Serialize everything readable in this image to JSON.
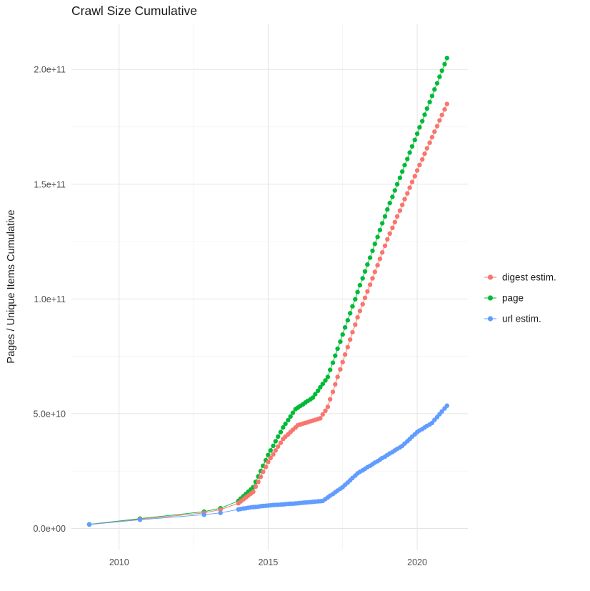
{
  "page": {
    "background": "#ffffff"
  },
  "chart_data": {
    "type": "scatter-line",
    "title": "Crawl Size Cumulative",
    "xlabel": "",
    "ylabel": "Pages / Unique Items Cumulative",
    "legend_position": "right",
    "grid": true,
    "panel": {
      "background": "#ffffff",
      "grid_major_color": "#e4e4e4",
      "grid_minor_color": "#f1f1f1"
    },
    "x_axis": {
      "domain": [
        2008.4,
        2021.7
      ],
      "ticks": [
        {
          "label": "2010",
          "value": 2010
        },
        {
          "label": "2015",
          "value": 2015
        },
        {
          "label": "2020",
          "value": 2020
        }
      ],
      "minor_values": [
        2012.5,
        2017.5
      ]
    },
    "y_axis": {
      "domain_e9": [
        -9.5,
        220
      ],
      "ticks": [
        {
          "label": "0.0e+00",
          "value_e9": 0
        },
        {
          "label": "5.0e+10",
          "value_e9": 50
        },
        {
          "label": "1.0e+11",
          "value_e9": 100
        },
        {
          "label": "1.5e+11",
          "value_e9": 150
        },
        {
          "label": "2.0e+11",
          "value_e9": 200
        }
      ],
      "minor_values_e9": [
        25,
        75,
        125,
        175
      ]
    },
    "values_unit": "1e9 (all y values are in billions of pages/items)",
    "x": [
      2009,
      2010.7,
      2012.85,
      2013.4,
      2014,
      2014.08,
      2014.17,
      2014.25,
      2014.33,
      2014.42,
      2014.5,
      2014.58,
      2014.67,
      2014.75,
      2014.83,
      2014.92,
      2015,
      2015.08,
      2015.17,
      2015.25,
      2015.33,
      2015.42,
      2015.5,
      2015.58,
      2015.67,
      2015.75,
      2015.83,
      2015.92,
      2016,
      2016.08,
      2016.17,
      2016.25,
      2016.33,
      2016.42,
      2016.5,
      2016.58,
      2016.67,
      2016.75,
      2016.83,
      2016.92,
      2017,
      2017.08,
      2017.17,
      2017.25,
      2017.33,
      2017.42,
      2017.5,
      2017.58,
      2017.67,
      2017.75,
      2017.83,
      2017.92,
      2018,
      2018.08,
      2018.17,
      2018.25,
      2018.33,
      2018.42,
      2018.5,
      2018.58,
      2018.67,
      2018.75,
      2018.83,
      2018.92,
      2019,
      2019.08,
      2019.17,
      2019.25,
      2019.33,
      2019.42,
      2019.5,
      2019.58,
      2019.67,
      2019.75,
      2019.83,
      2019.92,
      2020,
      2020.08,
      2020.17,
      2020.25,
      2020.33,
      2020.42,
      2020.5,
      2020.58,
      2020.67,
      2020.75,
      2020.83,
      2020.92,
      2021
    ],
    "series": [
      {
        "key": "digest",
        "name": "digest estim.",
        "color": "#F8766D",
        "values_e9": [
          1.7,
          4.0,
          6.8,
          8.2,
          11,
          11.8,
          12.7,
          13.5,
          14.3,
          15.2,
          16,
          18.2,
          20.3,
          22.5,
          24.7,
          26.8,
          29,
          30.7,
          32.3,
          34,
          35.7,
          37.3,
          39,
          40,
          41,
          42,
          43,
          44,
          45,
          45.3,
          45.7,
          46,
          46.3,
          46.7,
          47,
          47.3,
          47.7,
          48,
          49.7,
          51.3,
          53,
          56.3,
          59.5,
          62.8,
          66,
          69.3,
          72.5,
          75.8,
          79,
          82.3,
          85.5,
          88.8,
          92,
          94.8,
          97.7,
          100.5,
          103.3,
          106.2,
          109,
          111.8,
          114.7,
          117.5,
          120.3,
          123.2,
          126,
          128.5,
          131,
          133.5,
          136,
          138.5,
          141,
          143.5,
          146,
          148.5,
          151,
          153.5,
          156,
          158.4,
          160.8,
          163.3,
          165.7,
          168.1,
          170.5,
          172.9,
          175.3,
          177.8,
          180.2,
          182.6,
          185
        ]
      },
      {
        "key": "page",
        "name": "page",
        "color": "#00BA38",
        "values_e9": [
          1.8,
          4.3,
          7.3,
          8.8,
          12,
          13,
          14,
          15,
          16,
          17,
          18,
          20.3,
          22.7,
          25,
          27.3,
          29.7,
          32,
          34,
          36,
          38,
          40,
          42,
          44,
          45.6,
          47.2,
          48.8,
          50.4,
          52,
          52.7,
          53.4,
          54.1,
          54.9,
          55.6,
          56.3,
          57,
          58.5,
          60,
          61.5,
          63,
          64.5,
          66,
          69.1,
          72.2,
          75.3,
          78.3,
          81.4,
          84.5,
          87.6,
          90.7,
          93.8,
          96.8,
          99.9,
          103,
          106,
          109,
          112,
          115,
          118,
          121,
          124,
          127,
          130,
          133,
          136,
          139,
          141.8,
          144.5,
          147.3,
          150,
          152.8,
          155.5,
          158.3,
          161,
          163.8,
          166.5,
          169.3,
          172,
          174.8,
          177.5,
          180.3,
          183,
          185.8,
          188.5,
          191.3,
          194,
          196.8,
          199.5,
          202.3,
          205
        ]
      },
      {
        "key": "url",
        "name": "url estim.",
        "color": "#619CFF",
        "values_e9": [
          1.7,
          3.8,
          6.0,
          6.8,
          8.3,
          8.5,
          8.7,
          8.8,
          9.0,
          9.2,
          9.3,
          9.4,
          9.5,
          9.7,
          9.8,
          9.9,
          10,
          10.1,
          10.2,
          10.3,
          10.3,
          10.4,
          10.5,
          10.6,
          10.7,
          10.8,
          10.8,
          10.9,
          11,
          11.1,
          11.2,
          11.3,
          11.4,
          11.5,
          11.6,
          11.7,
          11.8,
          11.9,
          12,
          12.8,
          13.5,
          14.3,
          15,
          15.8,
          16.5,
          17.3,
          18,
          19,
          20,
          21,
          22,
          23,
          24,
          24.7,
          25.3,
          26,
          26.7,
          27.3,
          28,
          28.7,
          29.3,
          30,
          30.7,
          31.3,
          32,
          32.7,
          33.3,
          34,
          34.7,
          35.3,
          36,
          37,
          38,
          39,
          40,
          41,
          42,
          42.7,
          43.3,
          44,
          44.7,
          45.3,
          46,
          47.3,
          48.5,
          49.8,
          51,
          52.3,
          53.5
        ]
      }
    ]
  }
}
